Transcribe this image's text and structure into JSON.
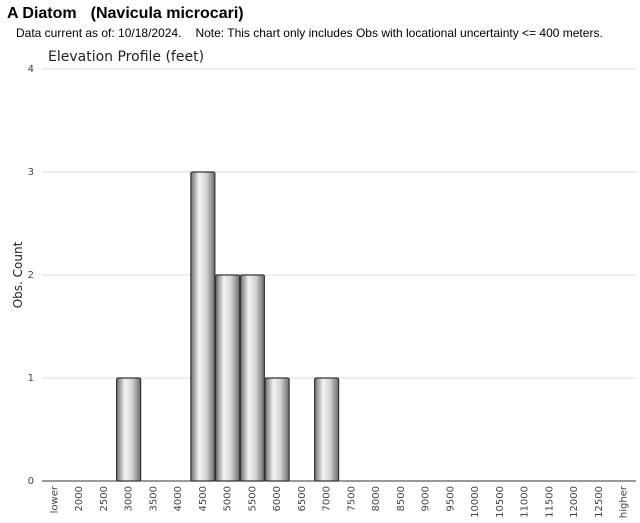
{
  "header": {
    "common_name": "A Diatom",
    "scientific_name": "(Navicula microcari)",
    "data_current": "Data current as of: 10/18/2024.",
    "note": "Note: This chart only includes Obs with locational uncertainty <= 400 meters."
  },
  "chart_data": {
    "type": "bar",
    "title": "Elevation Profile (feet)",
    "xlabel": "",
    "ylabel": "Obs. Count",
    "ylim": [
      0,
      4
    ],
    "yticks": [
      0,
      1,
      2,
      3,
      4
    ],
    "grid": true,
    "categories": [
      "lower",
      "2000",
      "2500",
      "3000",
      "3500",
      "4000",
      "4500",
      "5000",
      "5500",
      "6000",
      "6500",
      "7000",
      "7500",
      "8000",
      "8500",
      "9000",
      "9500",
      "10000",
      "10500",
      "11000",
      "11500",
      "12000",
      "12500",
      "higher"
    ],
    "values": [
      0,
      0,
      0,
      1,
      0,
      0,
      3,
      2,
      2,
      1,
      0,
      1,
      0,
      0,
      0,
      0,
      0,
      0,
      0,
      0,
      0,
      0,
      0,
      0
    ],
    "bar_color": "#b0b0b0"
  }
}
